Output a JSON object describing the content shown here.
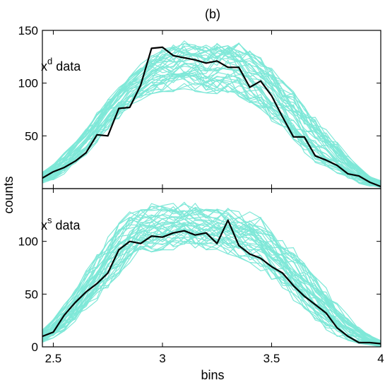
{
  "title": "(b)",
  "xlabel": "bins",
  "ylabel": "counts",
  "colors": {
    "ensemble": "#7fe8d8",
    "highlight": "#000000",
    "axes": "#000000"
  },
  "chart_data": [
    {
      "type": "line",
      "panel": "top",
      "label_base": "x",
      "label_sup": "d",
      "label_rest": " data",
      "xlim": [
        2.45,
        4.0
      ],
      "ylim": [
        0,
        150
      ],
      "yticks": [
        50,
        100,
        150
      ],
      "xticks": [
        2.5,
        3,
        3.5,
        4
      ],
      "x": [
        2.45,
        2.5,
        2.55,
        2.6,
        2.65,
        2.7,
        2.75,
        2.8,
        2.85,
        2.9,
        2.95,
        3.0,
        3.05,
        3.1,
        3.15,
        3.2,
        3.25,
        3.3,
        3.35,
        3.4,
        3.45,
        3.5,
        3.55,
        3.6,
        3.65,
        3.7,
        3.75,
        3.8,
        3.85,
        3.9,
        3.95,
        4.0
      ],
      "envelope_low": [
        5,
        8,
        14,
        22,
        32,
        44,
        56,
        66,
        76,
        84,
        90,
        92,
        92,
        94,
        92,
        90,
        90,
        88,
        86,
        80,
        74,
        64,
        54,
        44,
        34,
        24,
        18,
        12,
        8,
        4,
        2,
        1
      ],
      "envelope_high": [
        16,
        24,
        34,
        46,
        58,
        72,
        86,
        98,
        108,
        118,
        126,
        134,
        138,
        140,
        138,
        136,
        140,
        144,
        138,
        132,
        124,
        114,
        104,
        92,
        80,
        68,
        56,
        44,
        32,
        22,
        12,
        8
      ],
      "series": [
        {
          "name": "",
          "highlight": true,
          "values": [
            10,
            16,
            20,
            26,
            34,
            51,
            50,
            76,
            77,
            98,
            133,
            134,
            126,
            124,
            122,
            119,
            121,
            115,
            115,
            96,
            102,
            88,
            68,
            49,
            49,
            31,
            27,
            22,
            14,
            12,
            6,
            2
          ]
        }
      ]
    },
    {
      "type": "line",
      "panel": "bottom",
      "label_base": "x",
      "label_sup": "s",
      "label_rest": " data",
      "xlim": [
        2.45,
        4.0
      ],
      "ylim": [
        0,
        150
      ],
      "yticks": [
        0,
        50,
        100
      ],
      "xticks": [
        2.5,
        3,
        3.5,
        4
      ],
      "x": [
        2.45,
        2.5,
        2.55,
        2.6,
        2.65,
        2.7,
        2.75,
        2.8,
        2.85,
        2.9,
        2.95,
        3.0,
        3.05,
        3.1,
        3.15,
        3.2,
        3.25,
        3.3,
        3.35,
        3.4,
        3.45,
        3.5,
        3.55,
        3.6,
        3.65,
        3.7,
        3.75,
        3.8,
        3.85,
        3.9,
        3.95,
        4.0
      ],
      "envelope_low": [
        4,
        8,
        14,
        22,
        32,
        44,
        56,
        68,
        78,
        86,
        90,
        92,
        92,
        94,
        92,
        92,
        90,
        88,
        84,
        80,
        72,
        64,
        54,
        44,
        34,
        24,
        16,
        10,
        6,
        3,
        1,
        0
      ],
      "envelope_high": [
        16,
        26,
        40,
        56,
        72,
        88,
        104,
        118,
        128,
        134,
        136,
        134,
        136,
        138,
        136,
        134,
        132,
        132,
        130,
        128,
        124,
        114,
        104,
        94,
        82,
        70,
        56,
        42,
        30,
        20,
        12,
        6
      ],
      "series": [
        {
          "name": "",
          "highlight": true,
          "values": [
            10,
            14,
            30,
            42,
            52,
            60,
            70,
            92,
            100,
            98,
            105,
            104,
            108,
            110,
            106,
            108,
            98,
            120,
            96,
            88,
            84,
            76,
            70,
            58,
            48,
            40,
            32,
            18,
            10,
            4,
            4,
            3
          ]
        }
      ]
    }
  ]
}
